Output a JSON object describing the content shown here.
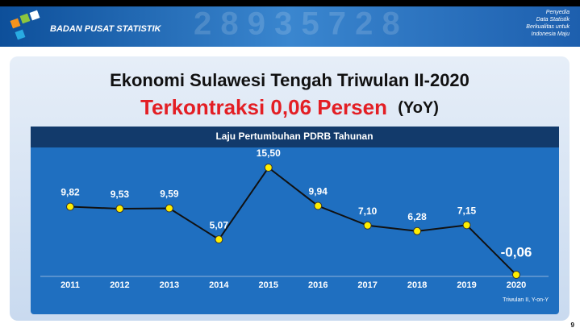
{
  "header": {
    "org": "BADAN PUSAT STATISTIK",
    "tagline": [
      "Penyedia",
      "Data Statistik",
      "Berkualitas untuk",
      "Indonesia Maju"
    ]
  },
  "slide": {
    "title": "Ekonomi Sulawesi Tengah Triwulan II-2020",
    "headline": "Terkontraksi 0,06 Persen",
    "headline_suffix": "(YoY)",
    "page": "9"
  },
  "chart_data": {
    "type": "line",
    "title": "Laju Pertumbuhan PDRB Tahunan",
    "categories": [
      "2011",
      "2012",
      "2013",
      "2014",
      "2015",
      "2016",
      "2017",
      "2018",
      "2019",
      "2020"
    ],
    "values": [
      9.82,
      9.53,
      9.59,
      5.07,
      15.5,
      9.94,
      7.1,
      6.28,
      7.15,
      -0.06
    ],
    "value_labels": [
      "9,82",
      "9,53",
      "9,59",
      "5,07",
      "15,50",
      "9,94",
      "7,10",
      "6,28",
      "7,15",
      "-0,06"
    ],
    "color": "#111111",
    "marker_color": "#ffee00",
    "note": "Triwulan II, Y-on-Y"
  }
}
